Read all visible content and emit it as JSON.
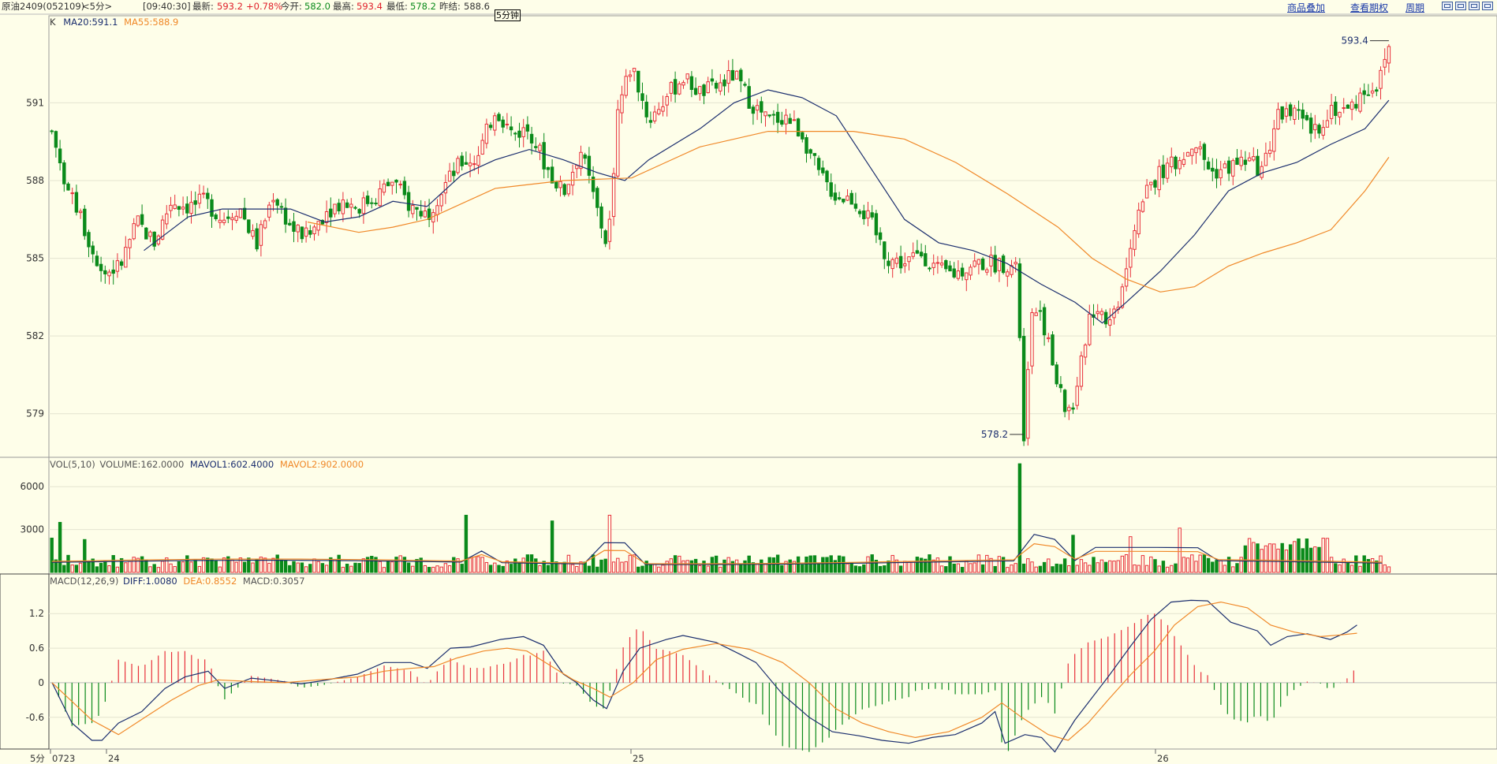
{
  "header": {
    "symbol": "原油2409(052109)",
    "period": "<5分>",
    "time": "[09:40:30]",
    "latest_label": "最新:",
    "latest": "593.2",
    "change": "+0.78%",
    "open_label": "今开:",
    "open": "582.0",
    "high_label": "最高:",
    "high": "593.4",
    "low_label": "最低:",
    "low": "578.2",
    "prev_close_label": "昨结:",
    "prev_close": "588.6",
    "period_box": "5分钟"
  },
  "top_links": {
    "overlay": "商品叠加",
    "options": "查看期权",
    "period": "周期"
  },
  "colors": {
    "background": "#FEFEE9",
    "up": "#E8303A",
    "down": "#0A8A1A",
    "ma_short": "#1B2E6E",
    "ma_long": "#F08828",
    "grid": "#E4E4D0"
  },
  "price_panel": {
    "label": "K",
    "ma20": "MA20:591.1",
    "ma55": "MA55:588.9",
    "high_marker": "593.4",
    "low_marker": "578.2",
    "yticks": [
      "591",
      "588",
      "585",
      "582",
      "579"
    ]
  },
  "volume_panel": {
    "label": "VOL(5,10)",
    "volume": "VOLUME:162.0000",
    "mavol1": "MAVOL1:602.4000",
    "mavol2": "MAVOL2:902.0000",
    "yticks": [
      "6000",
      "3000"
    ]
  },
  "macd_panel": {
    "label": "MACD(12,26,9)",
    "diff": "DIFF:1.0080",
    "dea": "DEA:0.8552",
    "macd": "MACD:0.3057",
    "yticks": [
      "1.2",
      "0.6",
      "0",
      "-0.6"
    ]
  },
  "x_axis": {
    "period_label": "5分",
    "labels": [
      "0723",
      "24",
      "25",
      "26"
    ]
  },
  "chart_data": {
    "type": "candlestick",
    "bar_count": 240,
    "price_ylim": [
      577.5,
      594.3
    ],
    "price_path": [
      [
        0,
        589.9
      ],
      [
        5,
        587.5
      ],
      [
        10,
        586.0
      ],
      [
        15,
        584.4
      ],
      [
        20,
        584.7
      ],
      [
        25,
        586.4
      ],
      [
        30,
        585.6
      ],
      [
        35,
        587.2
      ],
      [
        40,
        587.0
      ],
      [
        45,
        587.2
      ],
      [
        50,
        586.5
      ],
      [
        55,
        587.0
      ],
      [
        60,
        585.5
      ],
      [
        65,
        587.5
      ],
      [
        70,
        586.2
      ],
      [
        75,
        585.8
      ],
      [
        80,
        586.8
      ],
      [
        85,
        587.2
      ],
      [
        90,
        587.0
      ],
      [
        95,
        587.4
      ],
      [
        100,
        588.0
      ],
      [
        105,
        587.0
      ],
      [
        110,
        586.7
      ],
      [
        115,
        587.8
      ],
      [
        120,
        588.7
      ],
      [
        125,
        588.9
      ],
      [
        130,
        590.8
      ],
      [
        135,
        589.8
      ],
      [
        140,
        590.0
      ],
      [
        145,
        588.5
      ],
      [
        150,
        587.5
      ],
      [
        155,
        589.2
      ],
      [
        160,
        586.8
      ],
      [
        163,
        585.4
      ],
      [
        166,
        590.8
      ],
      [
        170,
        592.5
      ],
      [
        175,
        590.3
      ],
      [
        180,
        591.2
      ],
      [
        185,
        592.0
      ],
      [
        190,
        591.4
      ],
      [
        195,
        591.6
      ],
      [
        200,
        592.1
      ],
      [
        205,
        591.0
      ],
      [
        210,
        590.3
      ],
      [
        215,
        590.5
      ],
      [
        220,
        589.8
      ],
      [
        225,
        588.2
      ],
      [
        230,
        587.4
      ],
      [
        235,
        587.3
      ],
      [
        240,
        586.4
      ],
      [
        245,
        585.0
      ],
      [
        250,
        584.8
      ],
      [
        255,
        585.2
      ],
      [
        260,
        584.5
      ],
      [
        265,
        584.4
      ],
      [
        270,
        584.8
      ],
      [
        275,
        584.8
      ],
      [
        280,
        584.8
      ],
      [
        283,
        584.5
      ],
      [
        285,
        578.2
      ],
      [
        287,
        583.0
      ],
      [
        290,
        583.0
      ],
      [
        294,
        580.5
      ],
      [
        297,
        579.2
      ],
      [
        300,
        579.3
      ],
      [
        304,
        582.8
      ],
      [
        307,
        583.2
      ],
      [
        310,
        582.5
      ],
      [
        313,
        583.5
      ],
      [
        316,
        585.5
      ],
      [
        320,
        587.5
      ],
      [
        325,
        588.3
      ],
      [
        330,
        588.7
      ],
      [
        335,
        589.5
      ],
      [
        340,
        588.3
      ],
      [
        345,
        588.5
      ],
      [
        350,
        588.8
      ],
      [
        355,
        588.4
      ],
      [
        360,
        590.7
      ],
      [
        365,
        590.5
      ],
      [
        370,
        589.8
      ],
      [
        375,
        590.8
      ],
      [
        380,
        590.7
      ],
      [
        385,
        591.5
      ],
      [
        389,
        591.7
      ],
      [
        392,
        593.2
      ]
    ],
    "ma20_path": [
      [
        27,
        585.3
      ],
      [
        40,
        586.6
      ],
      [
        50,
        586.9
      ],
      [
        60,
        586.9
      ],
      [
        70,
        586.9
      ],
      [
        80,
        586.4
      ],
      [
        90,
        586.6
      ],
      [
        100,
        587.2
      ],
      [
        110,
        587.0
      ],
      [
        120,
        588.2
      ],
      [
        130,
        588.8
      ],
      [
        140,
        589.2
      ],
      [
        150,
        588.8
      ],
      [
        160,
        588.3
      ],
      [
        168,
        588.0
      ],
      [
        175,
        588.8
      ],
      [
        190,
        590.0
      ],
      [
        200,
        591.0
      ],
      [
        210,
        591.5
      ],
      [
        220,
        591.2
      ],
      [
        230,
        590.5
      ],
      [
        240,
        588.5
      ],
      [
        250,
        586.5
      ],
      [
        260,
        585.6
      ],
      [
        270,
        585.3
      ],
      [
        280,
        584.8
      ],
      [
        290,
        584.0
      ],
      [
        300,
        583.3
      ],
      [
        308,
        582.5
      ],
      [
        315,
        583.3
      ],
      [
        325,
        584.5
      ],
      [
        335,
        585.9
      ],
      [
        345,
        587.6
      ],
      [
        355,
        588.3
      ],
      [
        365,
        588.7
      ],
      [
        375,
        589.4
      ],
      [
        385,
        590.0
      ],
      [
        392,
        591.1
      ]
    ],
    "ma55_path": [
      [
        75,
        586.4
      ],
      [
        90,
        586.0
      ],
      [
        100,
        586.2
      ],
      [
        110,
        586.5
      ],
      [
        130,
        587.7
      ],
      [
        150,
        588.0
      ],
      [
        170,
        588.1
      ],
      [
        180,
        588.7
      ],
      [
        190,
        589.3
      ],
      [
        200,
        589.6
      ],
      [
        210,
        589.9
      ],
      [
        220,
        589.9
      ],
      [
        235,
        589.9
      ],
      [
        250,
        589.6
      ],
      [
        265,
        588.7
      ],
      [
        280,
        587.5
      ],
      [
        295,
        586.2
      ],
      [
        305,
        585.0
      ],
      [
        315,
        584.2
      ],
      [
        325,
        583.7
      ],
      [
        335,
        583.9
      ],
      [
        345,
        584.7
      ],
      [
        355,
        585.2
      ],
      [
        365,
        585.6
      ],
      [
        375,
        586.1
      ],
      [
        385,
        587.6
      ],
      [
        392,
        588.9
      ]
    ],
    "volume_ylim": [
      0,
      7500
    ],
    "volume_highlights": [
      [
        0,
        2400
      ],
      [
        3,
        3500
      ],
      [
        10,
        2300
      ],
      [
        122,
        4000
      ],
      [
        147,
        3600
      ],
      [
        163,
        4000
      ],
      [
        284,
        7600
      ],
      [
        300,
        2600
      ],
      [
        316,
        2500
      ],
      [
        331,
        3100
      ],
      [
        357,
        2000
      ]
    ],
    "macd_ylim": [
      -1.15,
      1.75
    ],
    "diff_path": [
      [
        0,
        0
      ],
      [
        6,
        -0.7
      ],
      [
        12,
        -1.0
      ],
      [
        15,
        -1.0
      ],
      [
        20,
        -0.7
      ],
      [
        27,
        -0.5
      ],
      [
        34,
        -0.1
      ],
      [
        40,
        0.1
      ],
      [
        47,
        0.2
      ],
      [
        52,
        -0.1
      ],
      [
        60,
        0.08
      ],
      [
        65,
        0.05
      ],
      [
        75,
        -0.02
      ],
      [
        82,
        0.04
      ],
      [
        92,
        0.15
      ],
      [
        100,
        0.35
      ],
      [
        108,
        0.35
      ],
      [
        113,
        0.25
      ],
      [
        120,
        0.6
      ],
      [
        126,
        0.62
      ],
      [
        135,
        0.75
      ],
      [
        142,
        0.8
      ],
      [
        148,
        0.65
      ],
      [
        154,
        0.15
      ],
      [
        158,
        0.0
      ],
      [
        163,
        -0.3
      ],
      [
        167,
        -0.45
      ],
      [
        172,
        0.2
      ],
      [
        177,
        0.6
      ],
      [
        185,
        0.75
      ],
      [
        190,
        0.82
      ],
      [
        200,
        0.7
      ],
      [
        207,
        0.5
      ],
      [
        212,
        0.35
      ],
      [
        220,
        -0.2
      ],
      [
        228,
        -0.6
      ],
      [
        235,
        -0.85
      ],
      [
        243,
        -0.92
      ],
      [
        250,
        -1.0
      ],
      [
        258,
        -1.05
      ],
      [
        265,
        -0.95
      ],
      [
        272,
        -0.9
      ],
      [
        280,
        -0.7
      ],
      [
        284,
        -0.5
      ],
      [
        287,
        -1.05
      ],
      [
        293,
        -0.9
      ],
      [
        298,
        -0.95
      ],
      [
        302,
        -1.2
      ],
      [
        308,
        -0.65
      ],
      [
        318,
        0.1
      ],
      [
        325,
        0.65
      ],
      [
        331,
        1.1
      ],
      [
        337,
        1.4
      ],
      [
        343,
        1.43
      ],
      [
        348,
        1.42
      ],
      [
        355,
        1.05
      ],
      [
        363,
        0.9
      ],
      [
        367,
        0.65
      ],
      [
        372,
        0.8
      ],
      [
        378,
        0.85
      ],
      [
        385,
        0.75
      ],
      [
        390,
        0.88
      ],
      [
        393,
        1.0
      ]
    ],
    "dea_path": [
      [
        0,
        0
      ],
      [
        12,
        -0.65
      ],
      [
        20,
        -0.9
      ],
      [
        28,
        -0.6
      ],
      [
        36,
        -0.3
      ],
      [
        44,
        -0.05
      ],
      [
        50,
        0.05
      ],
      [
        60,
        0.02
      ],
      [
        70,
        0.0
      ],
      [
        80,
        0.05
      ],
      [
        92,
        0.1
      ],
      [
        100,
        0.2
      ],
      [
        108,
        0.25
      ],
      [
        115,
        0.28
      ],
      [
        122,
        0.43
      ],
      [
        130,
        0.55
      ],
      [
        137,
        0.6
      ],
      [
        143,
        0.55
      ],
      [
        150,
        0.3
      ],
      [
        157,
        0.05
      ],
      [
        163,
        -0.1
      ],
      [
        168,
        -0.25
      ],
      [
        175,
        0.0
      ],
      [
        182,
        0.4
      ],
      [
        190,
        0.58
      ],
      [
        200,
        0.68
      ],
      [
        210,
        0.58
      ],
      [
        220,
        0.35
      ],
      [
        228,
        0.0
      ],
      [
        236,
        -0.45
      ],
      [
        244,
        -0.7
      ],
      [
        252,
        -0.85
      ],
      [
        260,
        -0.95
      ],
      [
        270,
        -0.85
      ],
      [
        280,
        -0.6
      ],
      [
        286,
        -0.35
      ],
      [
        292,
        -0.6
      ],
      [
        300,
        -0.9
      ],
      [
        306,
        -1.0
      ],
      [
        312,
        -0.7
      ],
      [
        318,
        -0.3
      ],
      [
        325,
        0.15
      ],
      [
        332,
        0.55
      ],
      [
        338,
        1.0
      ],
      [
        345,
        1.32
      ],
      [
        352,
        1.4
      ],
      [
        360,
        1.3
      ],
      [
        367,
        1.0
      ],
      [
        374,
        0.88
      ],
      [
        382,
        0.8
      ],
      [
        388,
        0.83
      ],
      [
        393,
        0.86
      ]
    ],
    "x_labels_at": [
      [
        0,
        "0723"
      ],
      [
        15,
        "24"
      ],
      [
        169,
        "25"
      ],
      [
        323,
        "26"
      ]
    ]
  }
}
